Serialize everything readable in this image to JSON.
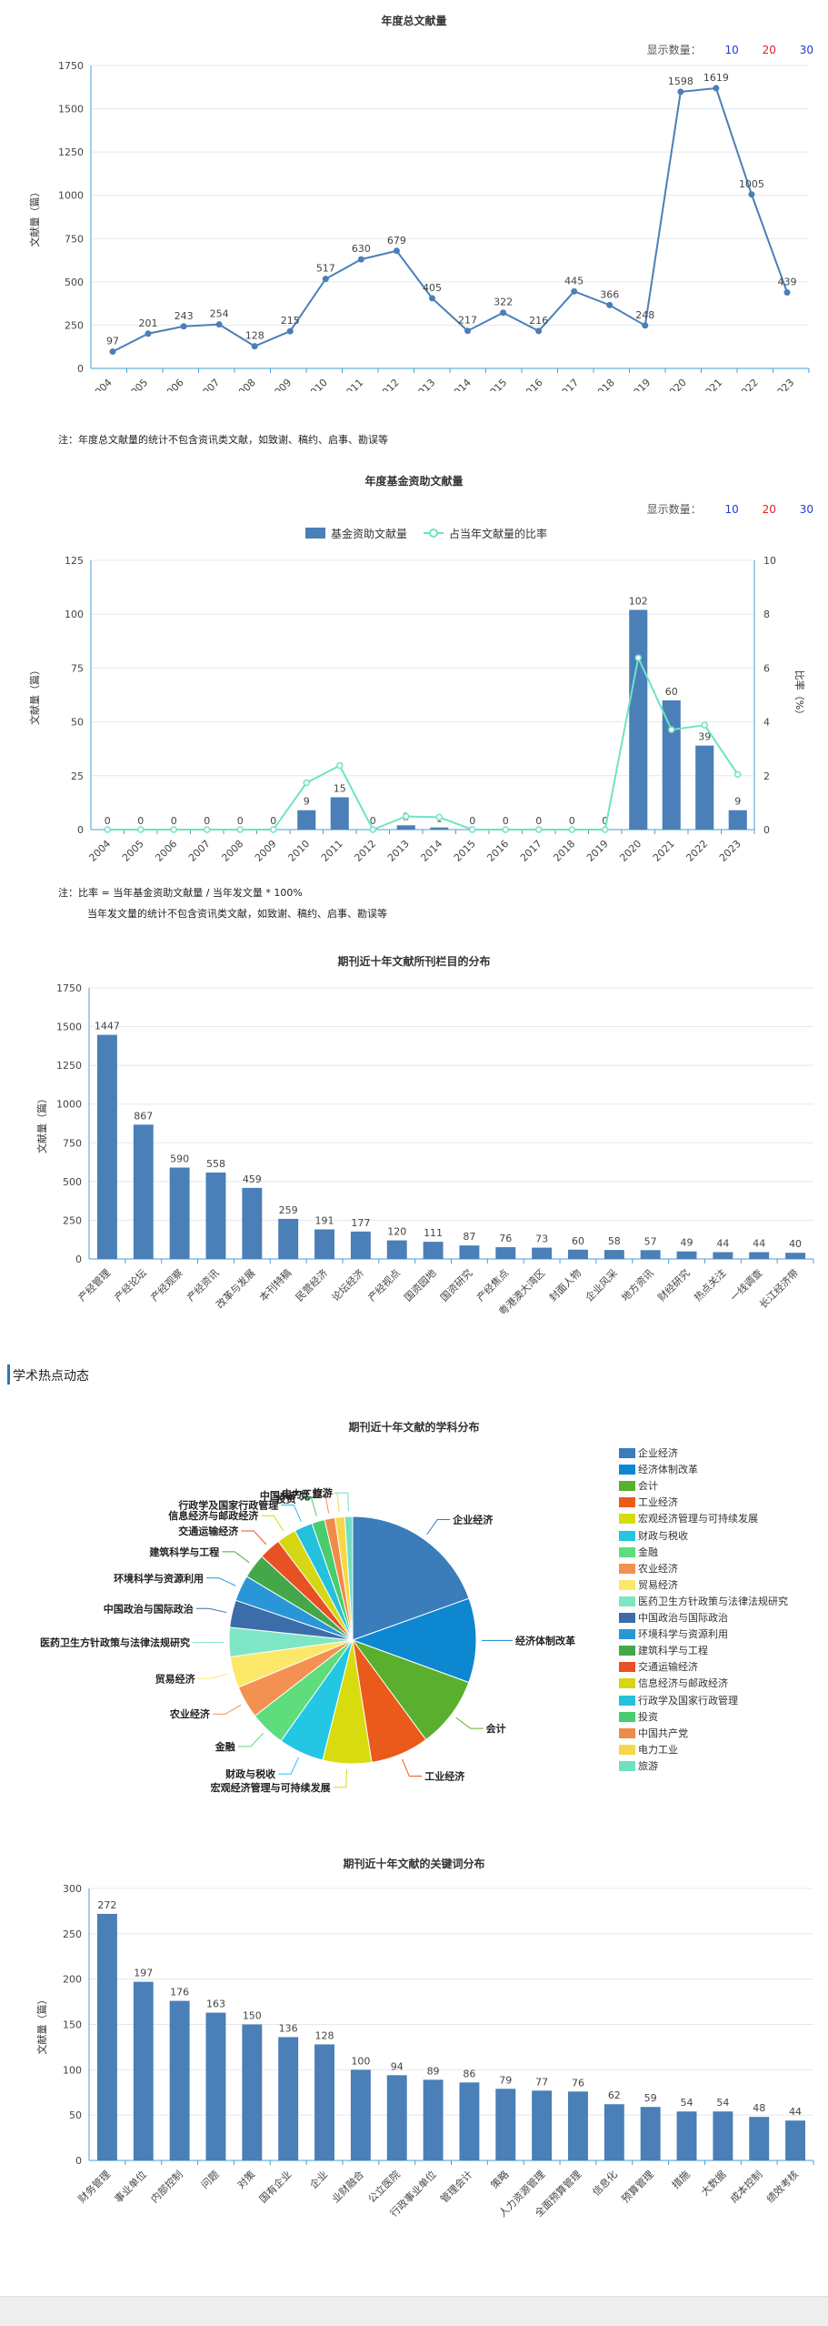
{
  "sections": {
    "academic_hotspot": "学术热点动态"
  },
  "display_count": {
    "label": "显示数量：",
    "options": [
      "10",
      "20",
      "30"
    ]
  },
  "notes": {
    "annual": "注：年度总文献量的统计不包含资讯类文献，如致谢、稿约、启事、勘误等",
    "fund_1": "注：比率 = 当年基金资助文献量 / 当年发文量 * 100%",
    "fund_2": "当年发文量的统计不包含资讯类文献，如致谢、稿约、启事、勘误等"
  },
  "colors": {
    "primary": "#4a7fb8",
    "line_green": "#6fe3c2",
    "axis": "#4a9fd6",
    "accent": "#2b77b8"
  },
  "chart_data": [
    {
      "type": "line",
      "title": "年度总文献量",
      "ylabel": "文献量（篇）",
      "ylim": [
        0,
        1750
      ],
      "yticks": [
        0,
        250,
        500,
        750,
        1000,
        1250,
        1500,
        1750
      ],
      "grid": true,
      "categories": [
        "2004",
        "2005",
        "2006",
        "2007",
        "2008",
        "2009",
        "2010",
        "2011",
        "2012",
        "2013",
        "2014",
        "2015",
        "2016",
        "2017",
        "2018",
        "2019",
        "2020",
        "2021",
        "2022",
        "2023"
      ],
      "values": [
        97,
        201,
        243,
        254,
        128,
        215,
        517,
        630,
        679,
        405,
        217,
        322,
        216,
        445,
        366,
        248,
        1598,
        1619,
        1005,
        439
      ]
    },
    {
      "type": "bar",
      "title": "年度基金资助文献量",
      "ylabel": "文献量（篇）",
      "y2label": "比率（%）",
      "ylim": [
        0,
        125
      ],
      "yticks": [
        0,
        25,
        50,
        75,
        100,
        125
      ],
      "y2lim": [
        0,
        10
      ],
      "y2ticks": [
        0,
        2,
        4,
        6,
        8,
        10
      ],
      "grid": true,
      "legend_position": "top",
      "categories": [
        "2004",
        "2005",
        "2006",
        "2007",
        "2008",
        "2009",
        "2010",
        "2011",
        "2012",
        "2013",
        "2014",
        "2015",
        "2016",
        "2017",
        "2018",
        "2019",
        "2020",
        "2021",
        "2022",
        "2023"
      ],
      "series": [
        {
          "name": "基金资助文献量",
          "type": "bar",
          "values": [
            0,
            0,
            0,
            0,
            0,
            0,
            9,
            15,
            0,
            2,
            1,
            0,
            0,
            0,
            0,
            0,
            102,
            60,
            39,
            9
          ]
        },
        {
          "name": "占当年文献量的比率",
          "type": "line",
          "values": [
            0,
            0,
            0,
            0,
            0,
            0,
            1.74,
            2.38,
            0,
            0.49,
            0.46,
            0,
            0,
            0,
            0,
            0,
            6.38,
            3.71,
            3.88,
            2.05
          ]
        }
      ]
    },
    {
      "type": "bar",
      "title": "期刊近十年文献所刊栏目的分布",
      "ylabel": "文献量（篇）",
      "ylim": [
        0,
        1750
      ],
      "yticks": [
        0,
        250,
        500,
        750,
        1000,
        1250,
        1500,
        1750
      ],
      "grid": true,
      "categories": [
        "产经管理",
        "产经论坛",
        "产经观察",
        "产经资讯",
        "改革与发展",
        "本刊特稿",
        "民营经济",
        "论坛经济",
        "产经视点",
        "国资园地",
        "国资研究",
        "产经焦点",
        "粤港澳大湾区",
        "封面人物",
        "企业风采",
        "地方资讯",
        "财经研究",
        "热点关注",
        "一线调查",
        "长江经济带"
      ],
      "values": [
        1447,
        867,
        590,
        558,
        459,
        259,
        191,
        177,
        120,
        111,
        87,
        76,
        73,
        60,
        58,
        57,
        49,
        44,
        44,
        40
      ]
    },
    {
      "type": "pie",
      "title": "期刊近十年文献的学科分布",
      "legend_position": "right",
      "categories": [
        "企业经济",
        "经济体制改革",
        "会计",
        "工业经济",
        "宏观经济管理与可持续发展",
        "财政与税收",
        "金融",
        "农业经济",
        "贸易经济",
        "医药卫生方针政策与法律法规研究",
        "中国政治与国际政治",
        "环境科学与资源利用",
        "建筑科学与工程",
        "交通运输经济",
        "信息经济与邮政经济",
        "行政学及国家行政管理",
        "投资",
        "中国共产党",
        "电力工业",
        "旅游"
      ],
      "values": [
        2300,
        1300,
        1100,
        900,
        750,
        700,
        550,
        500,
        480,
        450,
        420,
        400,
        380,
        340,
        300,
        280,
        200,
        160,
        150,
        120
      ],
      "colors": [
        "#3b7cba",
        "#0e87d1",
        "#5aaf2e",
        "#ea5a1a",
        "#d8dc0f",
        "#23c6e3",
        "#5fdc7c",
        "#f39152",
        "#fbe869",
        "#7fe6c5",
        "#3b6ea8",
        "#2996d8",
        "#44a84a",
        "#e85124",
        "#d6d614",
        "#24c0dc",
        "#48cc6c",
        "#f08a4b",
        "#f7d74a",
        "#6fe0c0"
      ]
    },
    {
      "type": "bar",
      "title": "期刊近十年文献的关键词分布",
      "ylabel": "文献量（篇）",
      "ylim": [
        0,
        300
      ],
      "yticks": [
        0,
        50,
        100,
        150,
        200,
        250,
        300
      ],
      "grid": true,
      "categories": [
        "财务管理",
        "事业单位",
        "内部控制",
        "问题",
        "对策",
        "国有企业",
        "企业",
        "业财融合",
        "公立医院",
        "行政事业单位",
        "管理会计",
        "策略",
        "人力资源管理",
        "全面预算管理",
        "信息化",
        "预算管理",
        "措施",
        "大数据",
        "成本控制",
        "绩效考核"
      ],
      "values": [
        272,
        197,
        176,
        163,
        150,
        136,
        128,
        100,
        94,
        89,
        86,
        79,
        77,
        76,
        62,
        59,
        54,
        54,
        48,
        44
      ]
    }
  ]
}
